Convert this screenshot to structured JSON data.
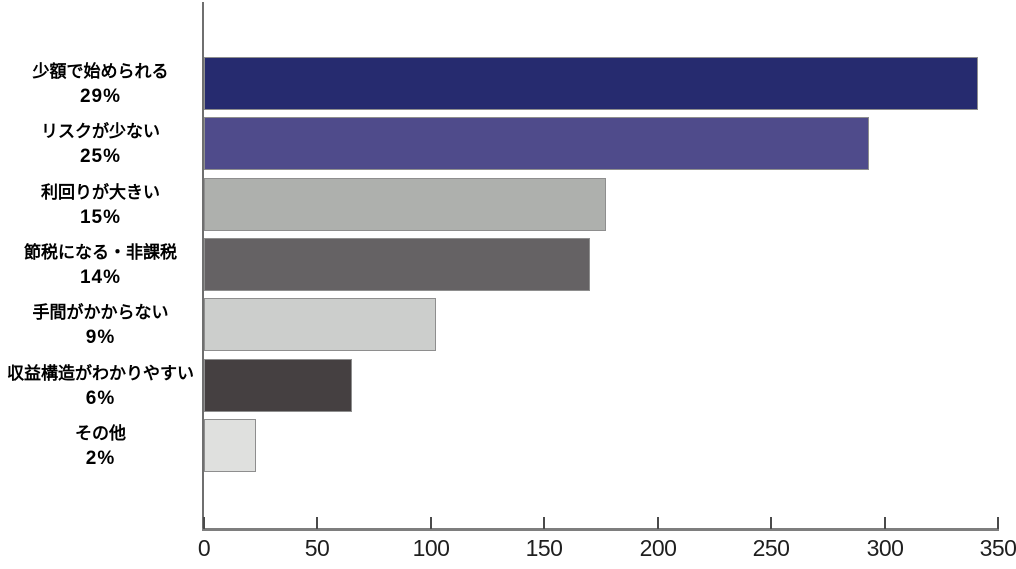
{
  "chart_data": {
    "type": "bar",
    "orientation": "horizontal",
    "title": "",
    "xlabel": "",
    "ylabel": "",
    "categories": [
      "少額で始められる",
      "リスクが少ない",
      "利回りが大きい",
      "節税になる・非課税",
      "手間がかからない",
      "収益構造がわかりやすい",
      "その他"
    ],
    "percent_labels": [
      "29%",
      "25%",
      "15%",
      "14%",
      "9%",
      "6%",
      "2%"
    ],
    "percents": [
      29,
      25,
      15,
      14,
      9,
      6,
      2
    ],
    "values": [
      341,
      293,
      177,
      170,
      102,
      65,
      23
    ],
    "bar_colors": [
      "#262b6f",
      "#4f4b8b",
      "#aeb0ad",
      "#656264",
      "#cccecc",
      "#454041",
      "#dfe0de"
    ],
    "xlim": [
      0,
      350
    ],
    "x_ticks": [
      0,
      50,
      100,
      150,
      200,
      250,
      300,
      350
    ],
    "grid": false,
    "legend": "none"
  },
  "colors": {
    "background": "#ffffff",
    "axis_line": "#7e7e7e",
    "tick_mark": "#4a4a4a",
    "tick_label_text": "#1f1f1f",
    "category_label_text": "#000000",
    "bar_border": "#8e8e8e"
  }
}
